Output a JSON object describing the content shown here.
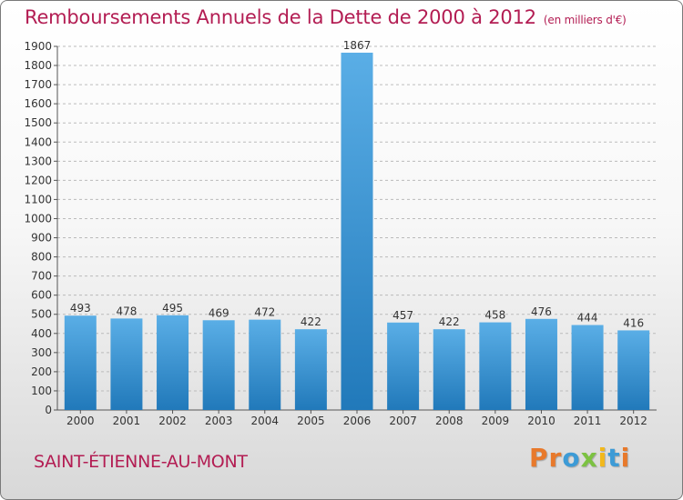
{
  "chart_data": {
    "type": "bar",
    "title": "Remboursements Annuels de la Dette de 2000 à 2012",
    "subtitle": "(en milliers d'€)",
    "categories": [
      "2000",
      "2001",
      "2002",
      "2003",
      "2004",
      "2005",
      "2006",
      "2007",
      "2008",
      "2009",
      "2010",
      "2011",
      "2012"
    ],
    "values": [
      493,
      478,
      495,
      469,
      472,
      422,
      1867,
      457,
      422,
      458,
      476,
      444,
      416
    ],
    "ylim": [
      0,
      1900
    ],
    "yticks": [
      0,
      100,
      200,
      300,
      400,
      500,
      600,
      700,
      800,
      900,
      1000,
      1100,
      1200,
      1300,
      1400,
      1500,
      1600,
      1700,
      1800,
      1900
    ],
    "grid": true,
    "xlabel": "",
    "ylabel": ""
  },
  "footer": {
    "city": "SAINT-ÉTIENNE-AU-MONT",
    "brand_letters": [
      "P",
      "r",
      "o",
      "x",
      "i",
      "t",
      "i"
    ]
  },
  "colors": {
    "title": "#b31d53",
    "bar_light": "#5aaee6",
    "bar_dark": "#2179ba",
    "grid": "#bbbbbb",
    "brand": [
      "#e8792b",
      "#e8792b",
      "#3d9bd6",
      "#7cc242",
      "#f2b81b",
      "#3d9bd6",
      "#e8792b"
    ]
  }
}
